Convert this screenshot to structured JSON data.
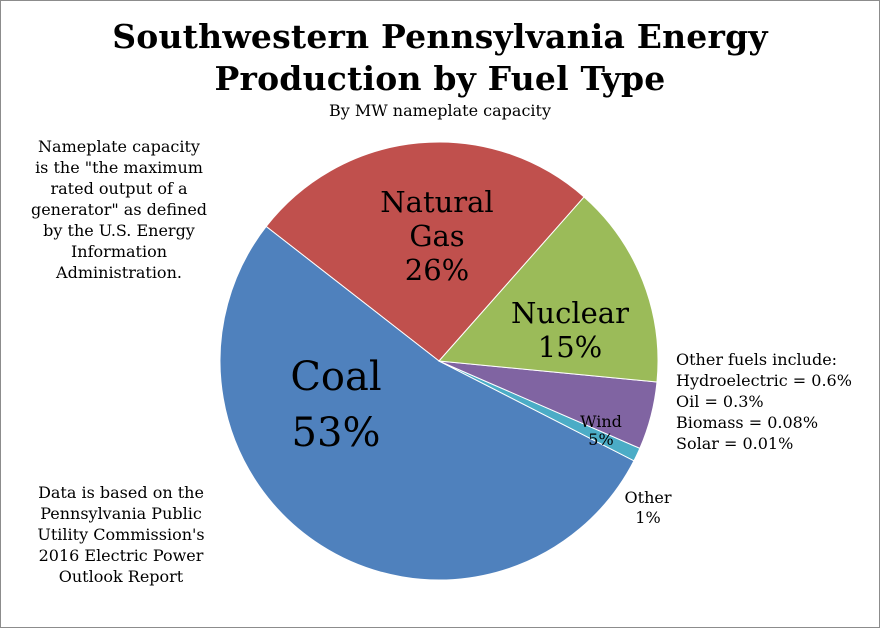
{
  "chart_data": {
    "type": "pie",
    "title_lines": [
      "Southwestern Pennsylvania Energy",
      "Production by Fuel Type"
    ],
    "subtitle": "By MW nameplate capacity",
    "slices": [
      {
        "label": "Coal",
        "value_label": "53%",
        "value": 53,
        "color": "#4f81bd"
      },
      {
        "label": "Natural Gas",
        "label_lines": [
          "Natural",
          "Gas"
        ],
        "value_label": "26%",
        "value": 26,
        "color": "#c0504d"
      },
      {
        "label": "Nuclear",
        "value_label": "15%",
        "value": 15,
        "color": "#9bbb59"
      },
      {
        "label": "Wind",
        "value_label": "5%",
        "value": 5,
        "color": "#8064a2"
      },
      {
        "label": "Other",
        "value_label": "1%",
        "value": 1,
        "color": "#4bacc6"
      }
    ]
  },
  "notes": {
    "capacity": [
      "Nameplate capacity",
      "is the \"the maximum",
      "rated output of a",
      "generator\" as defined",
      "by the U.S. Energy",
      "Information",
      "Administration."
    ],
    "source": [
      "Data is based on the",
      "Pennsylvania Public",
      "Utility Commission's",
      "2016 Electric Power",
      "Outlook Report"
    ],
    "other_fuels": [
      "Other fuels include:",
      "Hydroelectric = 0.6%",
      "Oil = 0.3%",
      "Biomass = 0.08%",
      "Solar = 0.01%"
    ]
  }
}
